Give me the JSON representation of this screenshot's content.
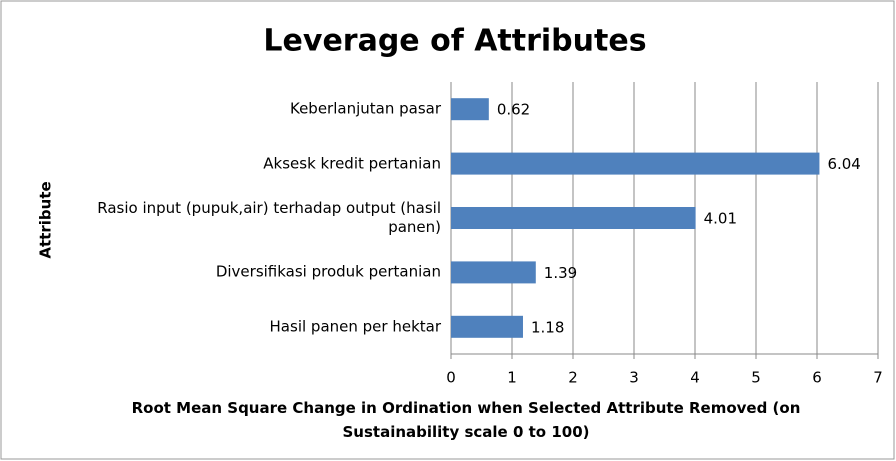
{
  "chart_data": {
    "type": "bar",
    "orientation": "horizontal",
    "title": "Leverage of Attributes",
    "categories": [
      "Keberlanjutan pasar",
      "Aksesk kredit pertanian",
      "Rasio input (pupuk,air) terhadap output (hasil panen)",
      "Diversifikasi produk pertanian",
      "Hasil panen per hektar"
    ],
    "values": [
      0.62,
      6.04,
      4.01,
      1.39,
      1.18
    ],
    "color": "#4f81bd",
    "xlim": [
      0,
      7
    ],
    "xticks": [
      0,
      1,
      2,
      3,
      4,
      5,
      6,
      7
    ],
    "grid": true,
    "xlabel": "Root Mean Square Change in Ordination when Selected Attribute Removed (on Sustainability scale 0 to 100)",
    "ylabel": "Attribute"
  }
}
